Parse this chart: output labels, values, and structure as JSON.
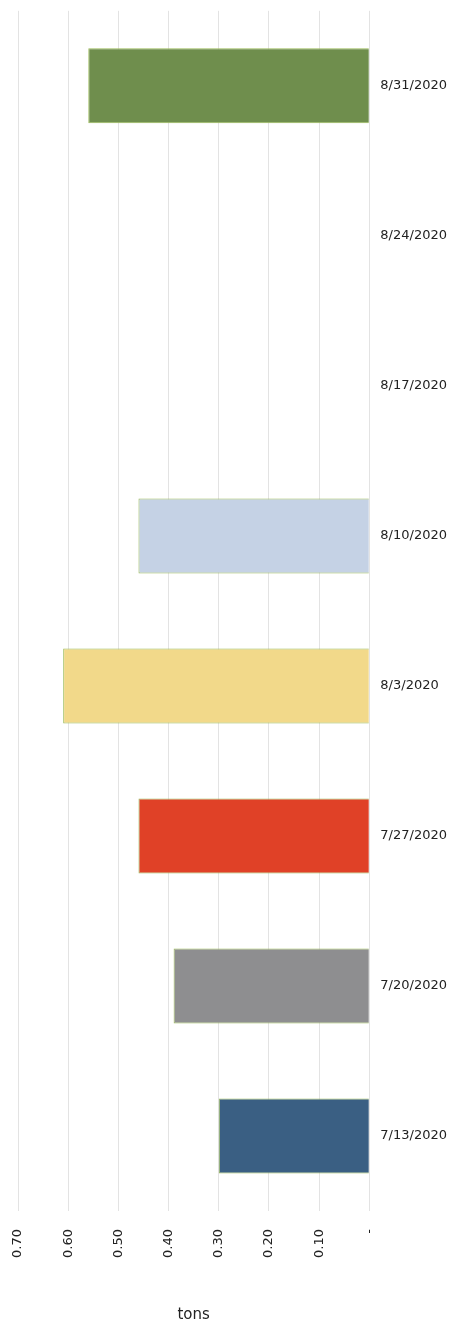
{
  "chart_data": {
    "type": "bar",
    "orientation": "horizontal",
    "ylabel": null,
    "xlabel": "tons",
    "categories": [
      "8/31/2020",
      "8/24/2020",
      "8/17/2020",
      "8/10/2020",
      "8/3/2020",
      "7/27/2020",
      "7/20/2020",
      "7/13/2020"
    ],
    "values": [
      0.56,
      0,
      0,
      0.46,
      0.61,
      0.46,
      0.39,
      0.3
    ],
    "colors": [
      "#6f8e4d",
      "#6f8e4d",
      "#6f8e4d",
      "#c5d2e5",
      "#f2d98a",
      "#e04127",
      "#8e8e90",
      "#3a5f83"
    ],
    "xlim": [
      0.7,
      0
    ],
    "xticks": [
      {
        "value": 0.7,
        "label": "0.70"
      },
      {
        "value": 0.6,
        "label": "0.60"
      },
      {
        "value": 0.5,
        "label": "0.50"
      },
      {
        "value": 0.4,
        "label": "0.40"
      },
      {
        "value": 0.3,
        "label": "0.30"
      },
      {
        "value": 0.2,
        "label": "0.20"
      },
      {
        "value": 0.1,
        "label": "0.10"
      },
      {
        "value": 0,
        "label": "-"
      }
    ],
    "grid": "x",
    "legend": false
  }
}
